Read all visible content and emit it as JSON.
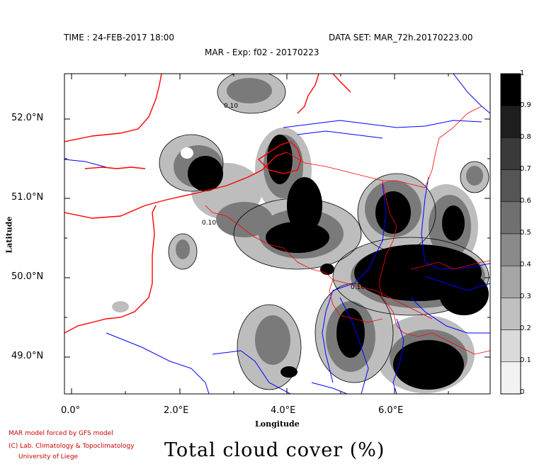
{
  "header": {
    "time_label": "TIME : 24-FEB-2017 18:00",
    "dataset_label": "DATA SET: MAR_72h.20170223.00",
    "experiment_label": "MAR - Exp: f02 - 20170223"
  },
  "axes": {
    "ylabel": "Latitude",
    "xlabel": "Longitude",
    "lat_ticks": [
      "52.0°N",
      "51.0°N",
      "50.0°N",
      "49.0°N"
    ],
    "lon_ticks": [
      "0.0°",
      "2.0°E",
      "4.0°E",
      "6.0°E"
    ]
  },
  "colorbar": {
    "labels": [
      "1",
      "0.9",
      "0.8",
      "0.7",
      "0.6",
      "0.5",
      "0.4",
      "0.3",
      "0.2",
      "0.1",
      "0"
    ],
    "colors": [
      "#000000",
      "#1e1e1e",
      "#3a3a3a",
      "#555555",
      "#707070",
      "#8a8a8a",
      "#a5a5a5",
      "#c0c0c0",
      "#dadada",
      "#f2f2f2",
      "#ffffff"
    ]
  },
  "contour_labels": [
    "0.10",
    "0.10",
    "0.10"
  ],
  "credits": {
    "line1": "MAR model forced by GFS model",
    "line2": "(C) Lab. Climatology & Topoclimatology",
    "line3": "University of Liege"
  },
  "title": "Total cloud cover (%)",
  "colors": {
    "borders": "#ff0000",
    "rivers": "#0000ff",
    "credit": "#cc0000"
  }
}
